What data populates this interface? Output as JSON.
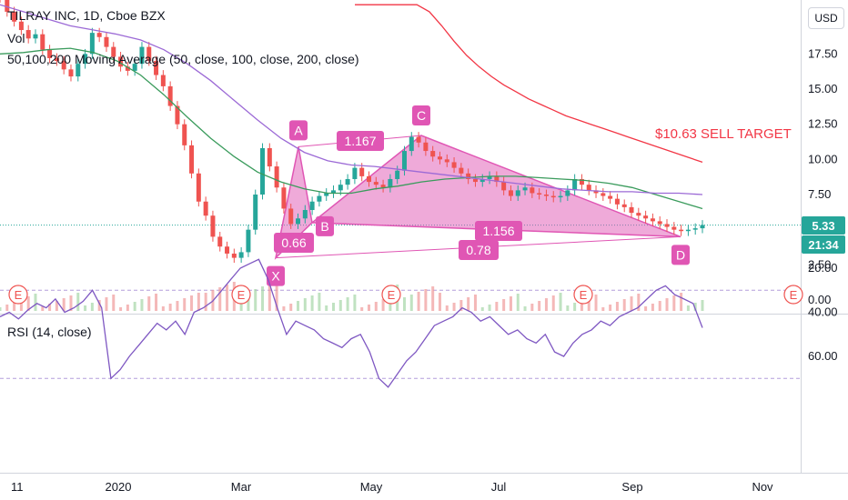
{
  "legend": {
    "symbol_line": "TILRAY INC, 1D, Cboe BZX",
    "vol_label": "Vol",
    "ma_label": "50,100,200 Moving Average (50, close, 100, close, 200, close)"
  },
  "rsi_legend": "RSI (14, close)",
  "currency_button": "USD",
  "last_price_tag": "5.33",
  "countdown_tag": "21:34",
  "annotation_text": "$10.63 SELL TARGET",
  "colors": {
    "up": "#26a69a",
    "down": "#ef5350",
    "pattern": "#e056b4",
    "ma50": "#3a9b5c",
    "ma100": "#9c6ad6",
    "ma200": "#f23645",
    "rsi_line": "#7e57c2",
    "rsi_band": "#f3e5f5"
  },
  "chart_data": [
    {
      "type": "candlestick",
      "title": "TILRAY INC, 1D, Cboe BZX",
      "ylim": [
        -0.5,
        20.5
      ],
      "y_ticks": [
        "17.50",
        "15.00",
        "12.50",
        "10.00",
        "7.50",
        "5.00",
        "2.50",
        "0.00"
      ],
      "x_ticks": [
        "11",
        "2020",
        "Mar",
        "May",
        "Jul",
        "Sep",
        "Nov"
      ],
      "earnings_markers": [
        "E",
        "E",
        "E",
        "E",
        "E"
      ],
      "price_series": [
        21.5,
        20.5,
        19.8,
        19.2,
        18.6,
        18.9,
        17.8,
        17.2,
        17.0,
        16.4,
        15.9,
        16.8,
        17.5,
        19.0,
        18.7,
        18.0,
        17.3,
        16.6,
        16.3,
        16.8,
        18.0,
        17.0,
        16.0,
        15.2,
        13.8,
        12.5,
        11.0,
        9.0,
        7.0,
        6.0,
        4.5,
        3.8,
        3.3,
        3.0,
        3.4,
        5.0,
        7.5,
        10.8,
        9.5,
        8.0,
        6.5,
        5.4,
        5.8,
        6.4,
        7.0,
        7.4,
        7.6,
        7.8,
        8.2,
        8.6,
        9.4,
        8.8,
        8.4,
        8.2,
        8.0,
        8.6,
        9.2,
        10.6,
        11.6,
        11.2,
        10.6,
        10.2,
        10.0,
        9.8,
        9.4,
        9.0,
        8.6,
        8.4,
        8.6,
        8.8,
        8.4,
        7.8,
        7.4,
        7.8,
        8.0,
        7.6,
        7.5,
        7.4,
        7.3,
        7.4,
        7.8,
        8.6,
        8.2,
        7.8,
        7.6,
        7.4,
        7.2,
        6.8,
        6.6,
        6.2,
        6.0,
        5.8,
        5.6,
        5.4,
        5.2,
        5.0,
        4.9,
        5.0,
        5.1,
        5.33
      ],
      "moving_averages": [
        {
          "name": "MA 50",
          "values": [
            17.5,
            17.6,
            17.8,
            17.9,
            17.6,
            17.0,
            16.0,
            14.6,
            13.0,
            11.5,
            10.2,
            9.1,
            8.4,
            7.9,
            7.6,
            7.6,
            7.9,
            8.1,
            8.4,
            8.6,
            8.7,
            8.8,
            8.8,
            8.7,
            8.6,
            8.5,
            8.3,
            8.0,
            7.5,
            7.0,
            6.5
          ]
        },
        {
          "name": "MA 100",
          "values": [
            21.0,
            20.5,
            20.0,
            19.5,
            19.2,
            18.9,
            18.5,
            17.8,
            16.8,
            15.6,
            14.2,
            12.8,
            11.5,
            10.5,
            9.9,
            9.6,
            9.5,
            9.3,
            9.1,
            8.9,
            8.7,
            8.5,
            8.3,
            8.1,
            7.9,
            7.8,
            7.7,
            7.7,
            7.6,
            7.6,
            7.5
          ]
        },
        {
          "name": "MA 200",
          "values": [
            21.0,
            21.0,
            21.0,
            21.0,
            21.0,
            21.0,
            20.5,
            19.5,
            18.4,
            17.4,
            16.6,
            15.9,
            15.3,
            14.8,
            14.3,
            13.9,
            13.5,
            13.1,
            12.8,
            12.5,
            12.2,
            11.9,
            11.6,
            11.3,
            11.0,
            10.7,
            10.4,
            10.1,
            9.8
          ]
        }
      ],
      "pattern": {
        "type": "XABCD",
        "points": [
          {
            "label": "X",
            "value": 3.0
          },
          {
            "label": "A",
            "value": 10.9
          },
          {
            "label": "B",
            "value": 5.5
          },
          {
            "label": "C",
            "value": 11.7
          },
          {
            "label": "D",
            "value": 4.5
          }
        ],
        "ratios": [
          "1.167",
          "0.66",
          "1.156",
          "0.78"
        ]
      },
      "annotation": "$10.63 SELL TARGET",
      "last_price": 5.33
    },
    {
      "type": "line",
      "title": "RSI (14, close)",
      "ylim": [
        12,
        75
      ],
      "y_ticks": [
        "60.00",
        "40.00",
        "20.00"
      ],
      "band": [
        30,
        70
      ],
      "values": [
        42,
        40,
        43,
        39,
        36,
        38,
        34,
        40,
        38,
        35,
        30,
        38,
        70,
        66,
        60,
        55,
        50,
        45,
        48,
        44,
        50,
        40,
        38,
        35,
        30,
        25,
        20,
        18,
        16,
        25,
        38,
        50,
        44,
        46,
        48,
        52,
        54,
        56,
        52,
        50,
        58,
        70,
        74,
        68,
        62,
        58,
        52,
        46,
        44,
        42,
        38,
        40,
        44,
        42,
        46,
        50,
        48,
        52,
        54,
        50,
        58,
        60,
        54,
        50,
        48,
        44,
        46,
        42,
        40,
        38,
        34,
        30,
        28,
        32,
        34,
        36,
        47
      ]
    }
  ]
}
